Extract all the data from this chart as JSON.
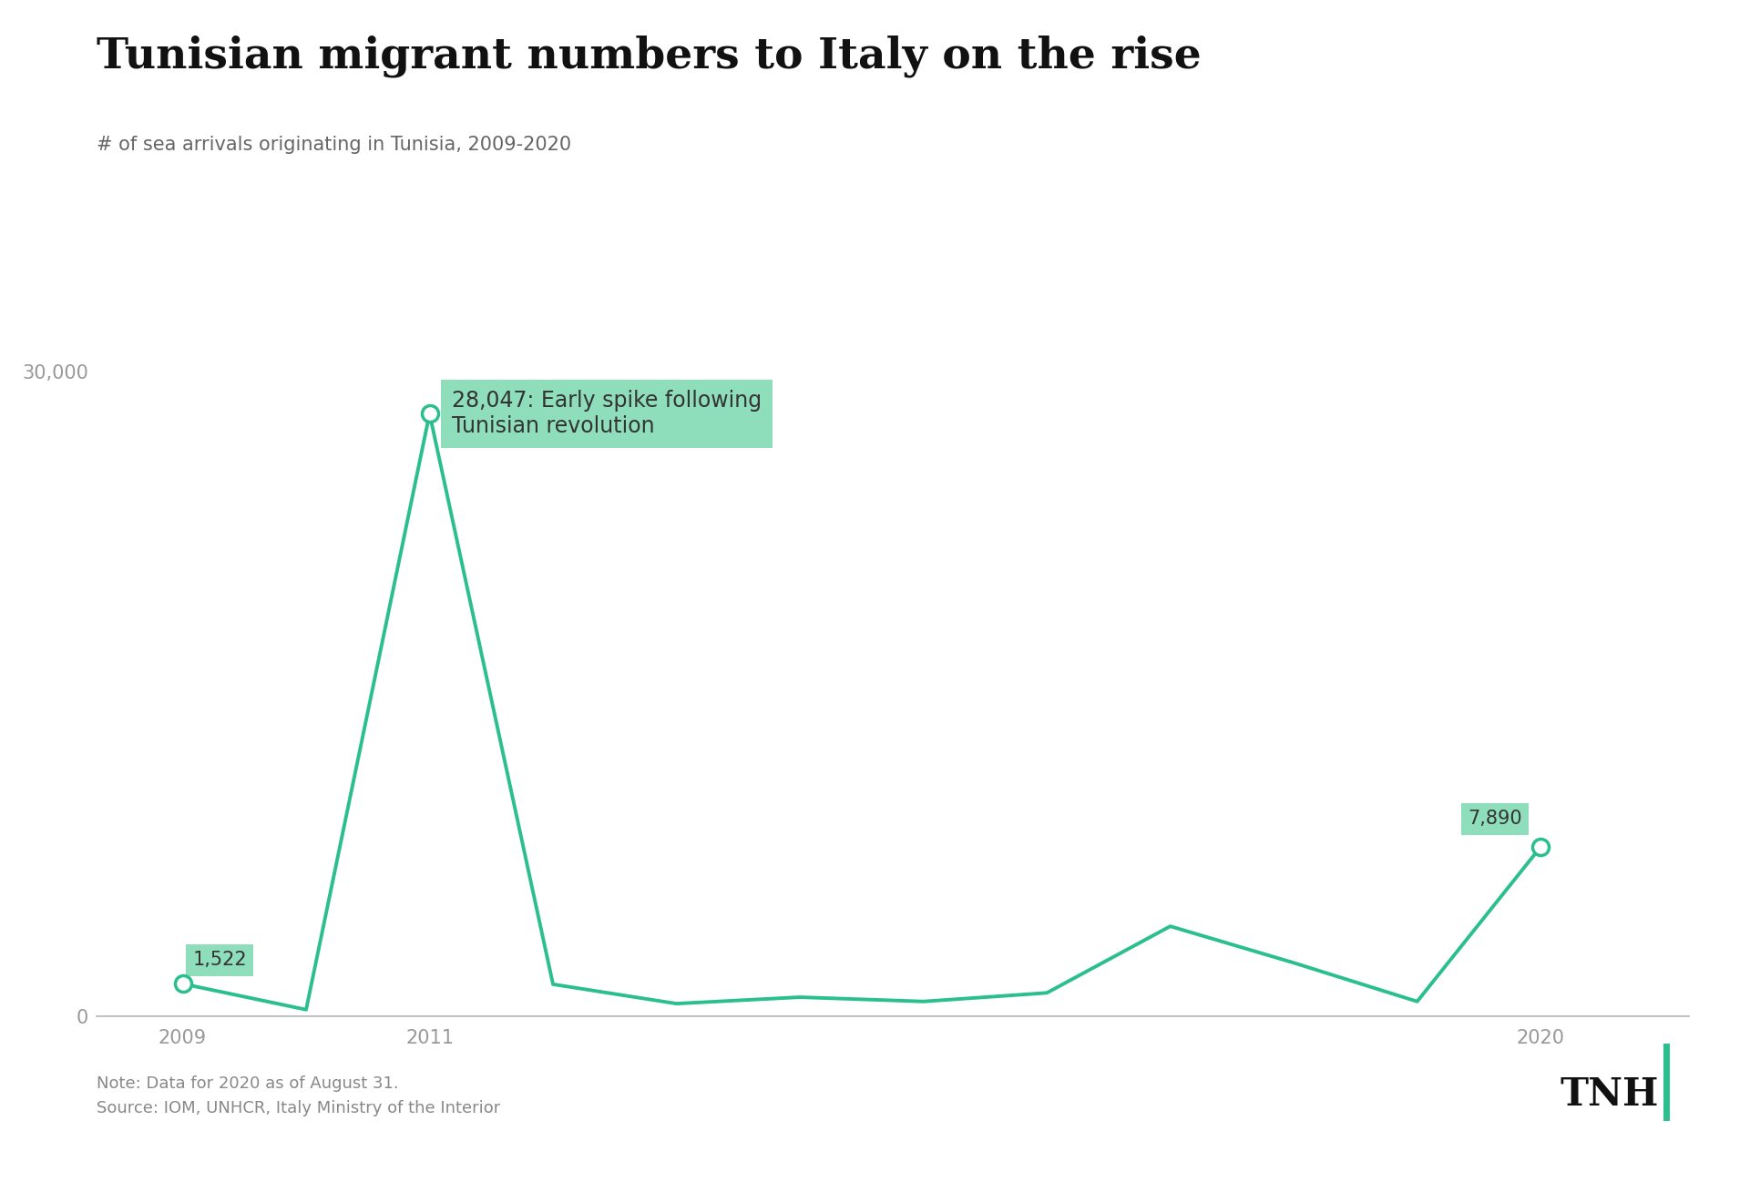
{
  "title": "Tunisian migrant numbers to Italy on the rise",
  "subtitle": "# of sea arrivals originating in Tunisia, 2009-2020",
  "years": [
    2009,
    2010,
    2011,
    2012,
    2013,
    2014,
    2015,
    2016,
    2017,
    2018,
    2019,
    2020
  ],
  "values": [
    1522,
    320,
    28047,
    1500,
    600,
    900,
    700,
    1100,
    4200,
    2500,
    700,
    7890
  ],
  "line_color": "#2bbf8e",
  "annotation_bg_color": "#82dbb5",
  "ylim": [
    0,
    33000
  ],
  "ytick_val": 30000,
  "note_text": "Note: Data for 2020 as of August 31.\nSource: IOM, UNHCR, Italy Ministry of the Interior",
  "tnh_text": "TNH",
  "highlight_points": [
    2009,
    2011,
    2020
  ],
  "highlight_values": [
    1522,
    28047,
    7890
  ],
  "annotation_2011": "28,047: Early spike following\nTunisian revolution",
  "annotation_2009": "1,522",
  "annotation_2020": "7,890",
  "background_color": "#ffffff",
  "title_fontsize": 34,
  "subtitle_fontsize": 15,
  "tick_fontsize": 15,
  "note_fontsize": 13,
  "tnh_fontsize": 30,
  "tnh_bar_color": "#2bbf8e"
}
